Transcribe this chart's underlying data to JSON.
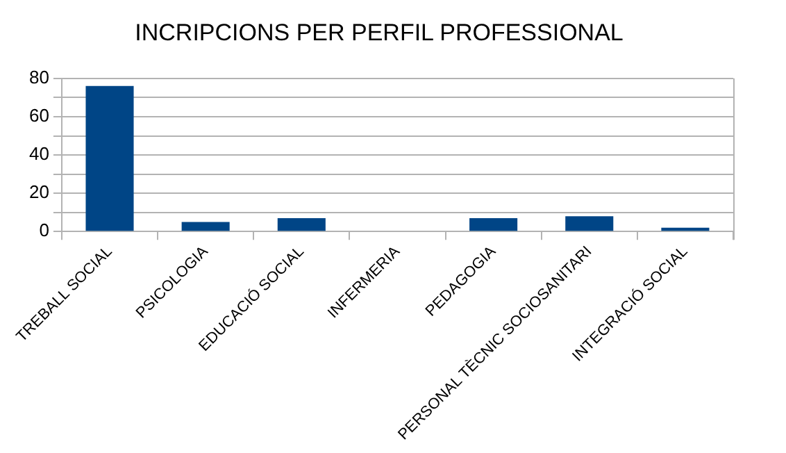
{
  "chart_data": {
    "type": "bar",
    "title": "INCRIPCIONS PER PERFIL PROFESSIONAL",
    "categories": [
      "TREBALL SOCIAL",
      "PSICOLOGIA",
      "EDUCACIÓ SOCIAL",
      "INFERMERIA",
      "PEDAGOGIA",
      "PERSONAL TÈCNIC SOCIOSANITARI",
      "INTEGRACIÓ SOCIAL"
    ],
    "values": [
      76,
      5,
      7,
      0,
      7,
      8,
      2
    ],
    "color": "#004586",
    "ylim": [
      0,
      80
    ],
    "yticks": [
      0,
      {
        "value": 10,
        "label": null
      },
      20,
      {
        "value": 30,
        "label": null
      },
      40,
      {
        "value": 50,
        "label": null
      },
      60,
      {
        "value": 70,
        "label": null
      },
      80
    ],
    "grid": "y",
    "legend": false
  }
}
